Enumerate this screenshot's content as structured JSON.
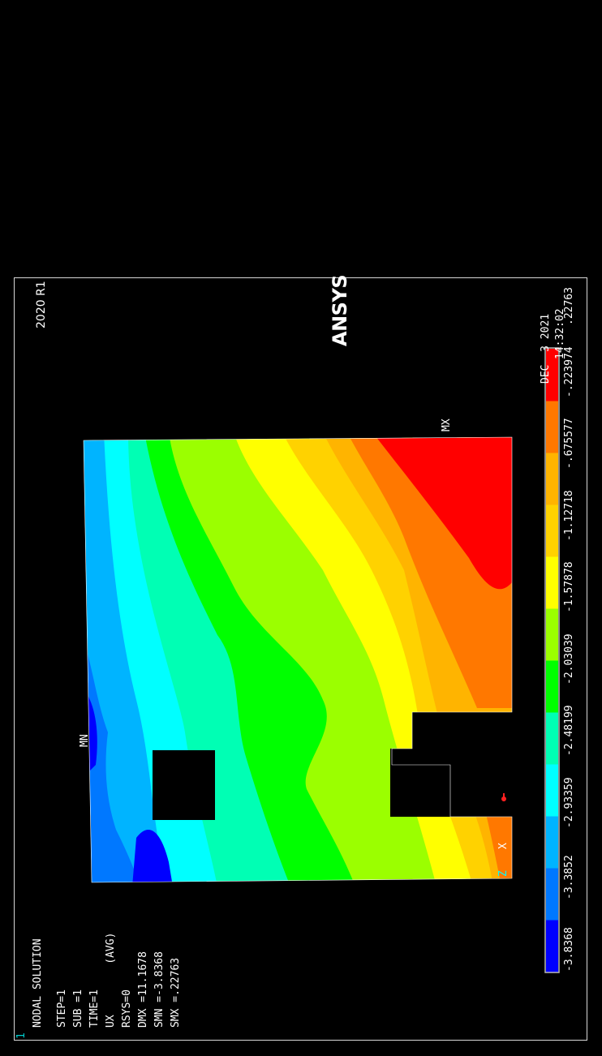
{
  "window": {
    "number": "1"
  },
  "brand": {
    "name": "ANSYS",
    "version": "2020 R1",
    "date": "DEC  3 2021",
    "time": "14:32:02"
  },
  "solution_info": {
    "title": "NODAL SOLUTION",
    "lines": [
      "STEP=1",
      "SUB =1",
      "TIME=1",
      "UX        (AVG)",
      "RSYS=0",
      "DMX =11.1678",
      "SMN =-3.8368",
      "SMX =.22763"
    ]
  },
  "markers": {
    "min": "MN",
    "max": "MX"
  },
  "triad": {
    "x_label": "X",
    "z_label": "Z"
  },
  "colors": {
    "background": "#000000",
    "bands": [
      "#0000ff",
      "#0078ff",
      "#00b4ff",
      "#00ffff",
      "#00ffb4",
      "#00ff00",
      "#9bff00",
      "#ffff00",
      "#ffd200",
      "#ffb400",
      "#ff7800",
      "#ff0000"
    ]
  },
  "legend": {
    "labels": [
      "-3.8368",
      "-3.3852",
      "-2.93359",
      "-2.48199",
      "-2.03039",
      "-1.57878",
      "-1.12718",
      "-.675577",
      "-.223974",
      ".22763"
    ]
  }
}
